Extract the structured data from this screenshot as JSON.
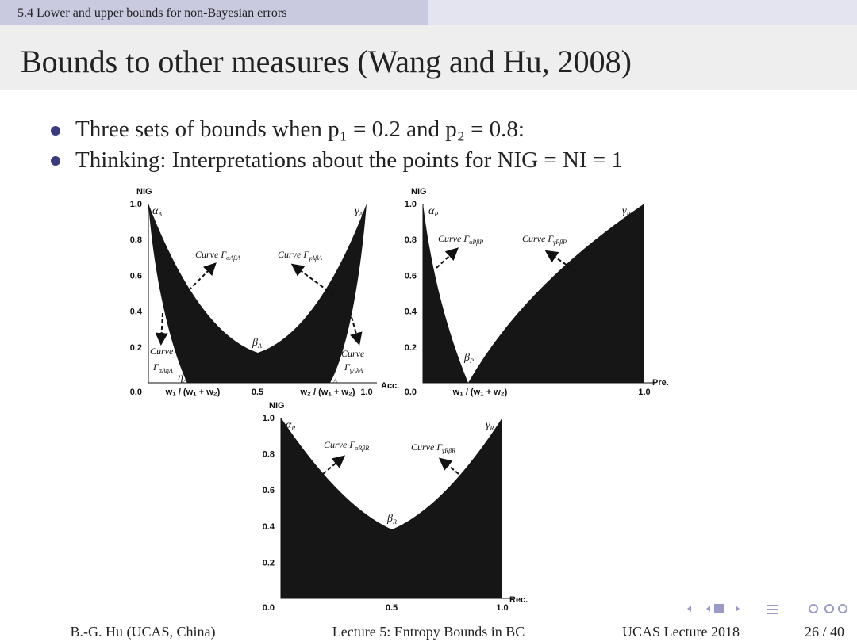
{
  "header": {
    "section": "5.4 Lower and upper bounds for non-Bayesian errors",
    "title": "Bounds to other measures (Wang and Hu, 2008)"
  },
  "bullets": [
    "Three sets of bounds when p₁ = 0.2 and p₂ = 0.8:",
    "Thinking: Interpretations about the points for NIG = NI = 1"
  ],
  "figures": [
    {
      "y_label": "NIG",
      "y_ticks": [
        "1.0",
        "0.8",
        "0.6",
        "0.4",
        "0.2"
      ],
      "origin": "0.0",
      "x_ticks": [
        "0.5",
        "1.0"
      ],
      "x_fractions": [
        "w₁ / (w₁ + w₂)",
        "w₂ / (w₁ + w₂)"
      ],
      "x_label": "Acc.",
      "points": [
        {
          "text": "α",
          "sub": "A"
        },
        {
          "text": "γ",
          "sub": "A"
        },
        {
          "text": "β",
          "sub": "A"
        },
        {
          "text": "η",
          "sub": "A"
        },
        {
          "text": "λ",
          "sub": "A"
        }
      ],
      "curves": [
        {
          "text": "Curve Γ",
          "sub": "αAβA"
        },
        {
          "text": "Curve Γ",
          "sub": "γAβA"
        },
        {
          "text": "Curve"
        },
        {
          "text": "Γ",
          "sub": "αAηA"
        },
        {
          "text": "Curve"
        },
        {
          "text": "Γ",
          "sub": "γAλA"
        }
      ]
    },
    {
      "y_label": "NIG",
      "y_ticks": [
        "1.0",
        "0.8",
        "0.6",
        "0.4",
        "0.2"
      ],
      "origin": "0.0",
      "x_ticks": [
        "1.0"
      ],
      "x_fractions": [
        "w₁ / (w₁ + w₂)"
      ],
      "x_label": "Pre.",
      "points": [
        {
          "text": "α",
          "sub": "P"
        },
        {
          "text": "γ",
          "sub": "P"
        },
        {
          "text": "β",
          "sub": "P"
        }
      ],
      "curves": [
        {
          "text": "Curve Γ",
          "sub": "αPβP"
        },
        {
          "text": "Curve Γ",
          "sub": "γPβP"
        }
      ]
    },
    {
      "y_label": "NIG",
      "y_ticks": [
        "1.0",
        "0.8",
        "0.6",
        "0.4",
        "0.2"
      ],
      "origin": "0.0",
      "x_ticks": [
        "0.5",
        "1.0"
      ],
      "x_fractions": [],
      "x_label": "Rec.",
      "points": [
        {
          "text": "α",
          "sub": "R"
        },
        {
          "text": "γ",
          "sub": "R"
        },
        {
          "text": "β",
          "sub": "R"
        }
      ],
      "curves": [
        {
          "text": "Curve Γ",
          "sub": "αRβR"
        },
        {
          "text": "Curve Γ",
          "sub": "γRβR"
        }
      ]
    }
  ],
  "footer": {
    "author": "B.-G. Hu (UCAS, China)",
    "lecture": "Lecture 5: Entropy Bounds in BC",
    "event": "UCAS Lecture 2018",
    "page": "26 / 40"
  }
}
